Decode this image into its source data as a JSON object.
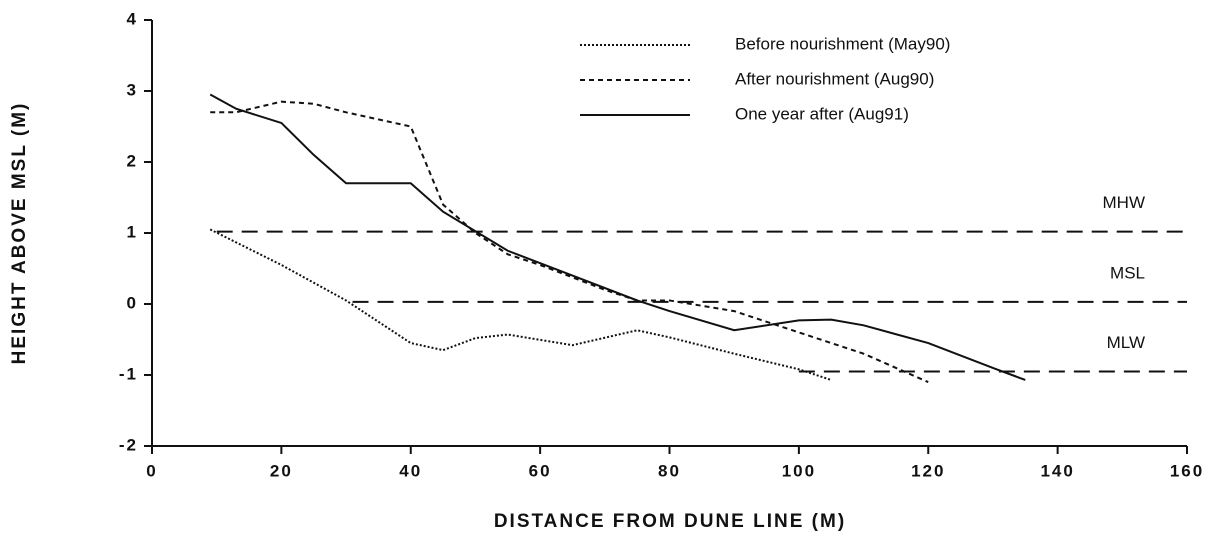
{
  "chart_data": {
    "type": "line",
    "x_label": "DISTANCE FROM DUNE LINE (M)",
    "y_label": "HEIGHT ABOVE MSL (M)",
    "xlim": [
      0,
      160
    ],
    "xticks": [
      0,
      20,
      40,
      60,
      80,
      100,
      120,
      140,
      160
    ],
    "ylim": [
      -2,
      4
    ],
    "yticks": [
      -2,
      -1,
      0,
      1,
      2,
      3,
      4
    ],
    "legend": "upper right",
    "series": [
      {
        "name": "Before nourishment (May90)",
        "color": "#111111",
        "dash": "dotted",
        "x": [
          9,
          20,
          30,
          40,
          45,
          50,
          55,
          65,
          75,
          80,
          90,
          100,
          105
        ],
        "values": [
          1.05,
          0.55,
          0.05,
          -0.55,
          -0.65,
          -0.48,
          -0.43,
          -0.58,
          -0.37,
          -0.47,
          -0.7,
          -0.92,
          -1.07
        ]
      },
      {
        "name": "After nourishment (Aug90)",
        "color": "#111111",
        "dash": "dashed",
        "x": [
          9,
          13,
          20,
          25,
          30,
          40,
          45,
          50,
          55,
          60,
          70,
          75,
          80,
          90,
          100,
          110,
          120
        ],
        "values": [
          2.7,
          2.7,
          2.85,
          2.82,
          2.7,
          2.5,
          1.4,
          1.0,
          0.7,
          0.55,
          0.2,
          0.05,
          0.05,
          -0.1,
          -0.4,
          -0.7,
          -1.1
        ]
      },
      {
        "name": "One year after (Aug91)",
        "color": "#111111",
        "dash": "solid",
        "x": [
          9,
          13,
          20,
          25,
          30,
          40,
          45,
          55,
          65,
          75,
          80,
          90,
          100,
          105,
          110,
          120,
          130,
          135
        ],
        "values": [
          2.95,
          2.75,
          2.55,
          2.1,
          1.7,
          1.7,
          1.3,
          0.75,
          0.4,
          0.05,
          -0.1,
          -0.37,
          -0.23,
          -0.22,
          -0.3,
          -0.55,
          -0.9,
          -1.07
        ]
      }
    ],
    "reference_lines": [
      {
        "label": "MHW",
        "value": 1.02,
        "x": [
          10,
          160
        ]
      },
      {
        "label": "MSL",
        "value": 0.03,
        "x": [
          31,
          160
        ]
      },
      {
        "label": "MLW",
        "value": -0.95,
        "x": [
          100,
          160
        ]
      }
    ]
  }
}
